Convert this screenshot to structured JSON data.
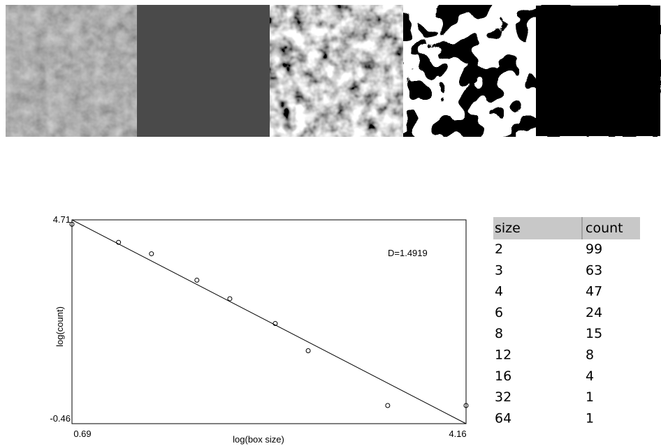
{
  "chart_data": {
    "type": "scatter",
    "x_label": "log(box size)",
    "y_label": "log(count)",
    "annotation": "D=1.4919",
    "x": [
      0.69,
      1.1,
      1.39,
      1.79,
      2.08,
      2.48,
      2.77,
      3.47,
      4.16
    ],
    "values": [
      4.6,
      4.14,
      3.85,
      3.18,
      2.71,
      2.08,
      1.39,
      0,
      0
    ],
    "fit_line": {
      "x": [
        0.69,
        4.16
      ],
      "y": [
        4.71,
        -0.46
      ]
    },
    "xlim": [
      0.69,
      4.16
    ],
    "ylim": [
      -0.46,
      4.71
    ],
    "xticks": [
      0.69,
      4.16
    ],
    "yticks": [
      -0.46,
      4.71
    ],
    "color": "#000000"
  },
  "table": {
    "header": [
      "size",
      "count"
    ],
    "rows": [
      [
        "2",
        "99"
      ],
      [
        "3",
        "63"
      ],
      [
        "4",
        "47"
      ],
      [
        "6",
        "24"
      ],
      [
        "8",
        "15"
      ],
      [
        "12",
        "8"
      ],
      [
        "16",
        "4"
      ],
      [
        "32",
        "1"
      ],
      [
        "64",
        "1"
      ]
    ]
  }
}
